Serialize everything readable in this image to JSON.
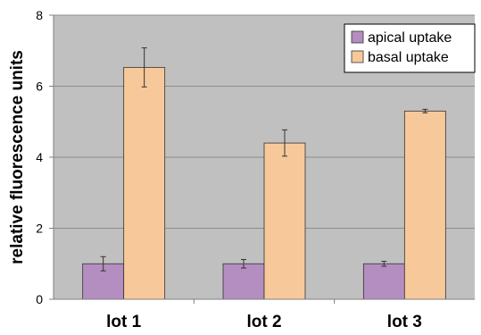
{
  "chart_data": {
    "type": "bar",
    "title": "",
    "xlabel": "",
    "ylabel": "relative fluorescence units",
    "categories": [
      "lot 1",
      "lot 2",
      "lot 3"
    ],
    "ylim": [
      0,
      8
    ],
    "yticks": [
      0,
      2,
      4,
      6,
      8
    ],
    "grid": true,
    "legend_position": "top-right",
    "series": [
      {
        "name": "apical uptake",
        "color": "#b48ec0",
        "values": [
          1.0,
          1.0,
          1.0
        ],
        "errors": [
          0.2,
          0.12,
          0.07
        ]
      },
      {
        "name": "basal uptake",
        "color": "#f7c99a",
        "values": [
          6.53,
          4.4,
          5.3
        ],
        "errors": [
          0.55,
          0.37,
          0.05
        ]
      }
    ],
    "plot_background": "#c0c0c0"
  }
}
